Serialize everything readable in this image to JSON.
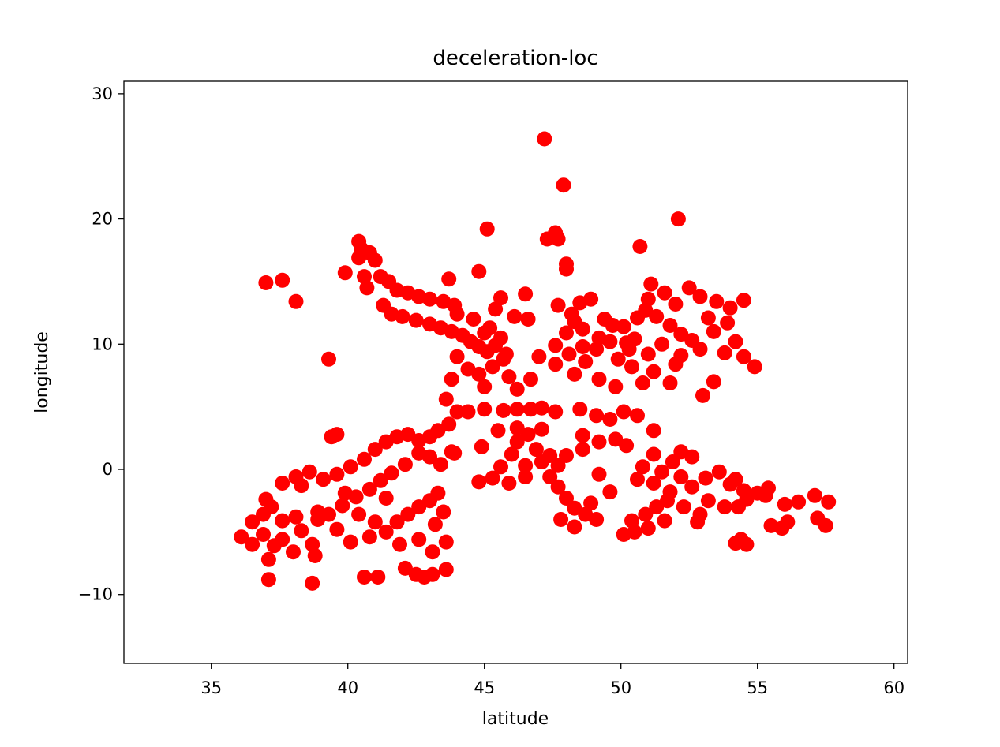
{
  "chart_data": {
    "type": "scatter",
    "title": "deceleration-loc",
    "xlabel": "latitude",
    "ylabel": "longitude",
    "xlim": [
      31.8,
      60.5
    ],
    "ylim": [
      -15.5,
      31
    ],
    "xticks": [
      35,
      40,
      45,
      50,
      55,
      60
    ],
    "yticks": [
      30,
      20,
      10,
      0,
      -10
    ],
    "xtick_labels": [
      "35",
      "40",
      "45",
      "50",
      "55",
      "60"
    ],
    "ytick_labels": [
      "30",
      "20",
      "10",
      "0",
      "−10"
    ],
    "grid": false,
    "legend": "none",
    "series": [
      {
        "color": "#ff0000",
        "marker": "circle",
        "points": [
          [
            47.2,
            26.4
          ],
          [
            47.9,
            22.7
          ],
          [
            52.1,
            20.0
          ],
          [
            45.1,
            19.2
          ],
          [
            47.3,
            18.4
          ],
          [
            47.6,
            18.9
          ],
          [
            47.7,
            18.4
          ],
          [
            40.4,
            18.2
          ],
          [
            40.5,
            17.6
          ],
          [
            40.8,
            17.3
          ],
          [
            41.0,
            16.7
          ],
          [
            40.4,
            16.9
          ],
          [
            50.7,
            17.8
          ],
          [
            48.0,
            16.4
          ],
          [
            48.0,
            16.0
          ],
          [
            39.9,
            15.7
          ],
          [
            44.8,
            15.8
          ],
          [
            43.7,
            15.2
          ],
          [
            37.0,
            14.9
          ],
          [
            37.6,
            15.1
          ],
          [
            38.1,
            13.4
          ],
          [
            40.6,
            15.4
          ],
          [
            41.2,
            15.4
          ],
          [
            41.5,
            15.0
          ],
          [
            40.7,
            14.5
          ],
          [
            41.8,
            14.3
          ],
          [
            42.2,
            14.1
          ],
          [
            42.6,
            13.8
          ],
          [
            43.0,
            13.6
          ],
          [
            43.5,
            13.4
          ],
          [
            43.9,
            13.1
          ],
          [
            41.3,
            13.1
          ],
          [
            41.6,
            12.4
          ],
          [
            42.0,
            12.2
          ],
          [
            42.5,
            11.9
          ],
          [
            43.0,
            11.6
          ],
          [
            43.4,
            11.3
          ],
          [
            43.8,
            11.0
          ],
          [
            44.2,
            10.7
          ],
          [
            44.5,
            10.2
          ],
          [
            44.8,
            9.8
          ],
          [
            45.1,
            9.4
          ],
          [
            45.4,
            9.9
          ],
          [
            45.6,
            10.5
          ],
          [
            45.2,
            11.3
          ],
          [
            45.4,
            12.8
          ],
          [
            45.6,
            13.7
          ],
          [
            46.1,
            12.2
          ],
          [
            46.6,
            12.0
          ],
          [
            46.5,
            14.0
          ],
          [
            44.0,
            12.4
          ],
          [
            44.6,
            12.0
          ],
          [
            45.0,
            10.9
          ],
          [
            45.7,
            8.8
          ],
          [
            45.3,
            8.2
          ],
          [
            44.8,
            7.6
          ],
          [
            45.9,
            7.4
          ],
          [
            46.2,
            6.4
          ],
          [
            44.4,
            8.0
          ],
          [
            43.8,
            7.2
          ],
          [
            44.0,
            9.0
          ],
          [
            45.0,
            6.6
          ],
          [
            46.7,
            7.2
          ],
          [
            45.8,
            9.2
          ],
          [
            39.3,
            8.8
          ],
          [
            48.5,
            13.3
          ],
          [
            48.9,
            13.6
          ],
          [
            49.4,
            12.0
          ],
          [
            48.2,
            12.4
          ],
          [
            48.6,
            11.2
          ],
          [
            49.2,
            10.5
          ],
          [
            48.0,
            10.9
          ],
          [
            47.6,
            9.9
          ],
          [
            48.1,
            9.2
          ],
          [
            48.7,
            8.6
          ],
          [
            49.1,
            9.6
          ],
          [
            49.6,
            10.2
          ],
          [
            47.6,
            8.4
          ],
          [
            48.3,
            7.6
          ],
          [
            49.2,
            7.2
          ],
          [
            49.9,
            8.8
          ],
          [
            50.3,
            9.6
          ],
          [
            50.5,
            10.4
          ],
          [
            50.1,
            11.4
          ],
          [
            50.6,
            12.1
          ],
          [
            50.9,
            12.7
          ],
          [
            51.0,
            13.6
          ],
          [
            51.1,
            14.8
          ],
          [
            51.6,
            14.1
          ],
          [
            52.0,
            13.2
          ],
          [
            52.5,
            14.5
          ],
          [
            52.9,
            13.8
          ],
          [
            53.5,
            13.4
          ],
          [
            54.0,
            12.9
          ],
          [
            54.5,
            13.5
          ],
          [
            53.9,
            11.7
          ],
          [
            53.4,
            11.0
          ],
          [
            52.6,
            10.3
          ],
          [
            52.9,
            9.6
          ],
          [
            53.8,
            9.3
          ],
          [
            54.5,
            9.0
          ],
          [
            54.9,
            8.2
          ],
          [
            54.2,
            10.2
          ],
          [
            51.3,
            12.2
          ],
          [
            51.8,
            11.5
          ],
          [
            52.2,
            10.8
          ],
          [
            51.5,
            10.0
          ],
          [
            51.0,
            9.2
          ],
          [
            50.4,
            8.2
          ],
          [
            51.2,
            7.8
          ],
          [
            52.0,
            8.4
          ],
          [
            51.8,
            6.9
          ],
          [
            50.8,
            6.9
          ],
          [
            49.8,
            6.6
          ],
          [
            53.4,
            7.0
          ],
          [
            53.0,
            5.9
          ],
          [
            47.7,
            13.1
          ],
          [
            48.3,
            11.8
          ],
          [
            49.7,
            11.5
          ],
          [
            52.2,
            9.1
          ],
          [
            47.0,
            9.0
          ],
          [
            48.6,
            9.8
          ],
          [
            50.2,
            10.1
          ],
          [
            53.2,
            12.1
          ],
          [
            45.0,
            4.8
          ],
          [
            45.7,
            4.7
          ],
          [
            46.2,
            4.8
          ],
          [
            46.7,
            4.8
          ],
          [
            47.1,
            4.9
          ],
          [
            47.6,
            4.6
          ],
          [
            44.4,
            4.6
          ],
          [
            45.5,
            3.1
          ],
          [
            46.2,
            3.3
          ],
          [
            46.6,
            2.8
          ],
          [
            47.1,
            3.2
          ],
          [
            46.9,
            1.6
          ],
          [
            47.4,
            1.1
          ],
          [
            46.5,
            0.3
          ],
          [
            46.0,
            1.2
          ],
          [
            45.6,
            0.2
          ],
          [
            45.3,
            -0.7
          ],
          [
            44.8,
            -1.0
          ],
          [
            45.9,
            -1.1
          ],
          [
            46.5,
            -0.6
          ],
          [
            46.2,
            2.2
          ],
          [
            44.9,
            1.8
          ],
          [
            43.6,
            5.6
          ],
          [
            44.0,
            4.6
          ],
          [
            43.7,
            3.6
          ],
          [
            43.3,
            3.1
          ],
          [
            43.0,
            2.6
          ],
          [
            42.6,
            2.3
          ],
          [
            42.2,
            2.8
          ],
          [
            41.8,
            2.6
          ],
          [
            41.4,
            2.2
          ],
          [
            41.0,
            1.6
          ],
          [
            40.6,
            0.8
          ],
          [
            40.1,
            0.2
          ],
          [
            39.6,
            -0.4
          ],
          [
            39.1,
            -0.8
          ],
          [
            38.6,
            -0.2
          ],
          [
            38.1,
            -0.6
          ],
          [
            37.6,
            -1.1
          ],
          [
            39.6,
            2.8
          ],
          [
            39.4,
            2.6
          ],
          [
            42.6,
            1.3
          ],
          [
            43.0,
            1.0
          ],
          [
            43.4,
            0.4
          ],
          [
            43.8,
            1.4
          ],
          [
            42.1,
            0.4
          ],
          [
            41.6,
            -0.3
          ],
          [
            41.2,
            -0.9
          ],
          [
            40.8,
            -1.6
          ],
          [
            40.3,
            -2.2
          ],
          [
            39.8,
            -2.9
          ],
          [
            39.3,
            -3.6
          ],
          [
            38.9,
            -4.0
          ],
          [
            40.4,
            -3.6
          ],
          [
            41.0,
            -4.2
          ],
          [
            41.4,
            -5.0
          ],
          [
            41.8,
            -4.2
          ],
          [
            42.2,
            -3.6
          ],
          [
            42.6,
            -3.0
          ],
          [
            43.0,
            -2.5
          ],
          [
            43.3,
            -1.9
          ],
          [
            43.5,
            -3.4
          ],
          [
            43.2,
            -4.4
          ],
          [
            43.6,
            -5.8
          ],
          [
            43.1,
            -6.6
          ],
          [
            42.6,
            -5.6
          ],
          [
            41.9,
            -6.0
          ],
          [
            40.8,
            -5.4
          ],
          [
            40.1,
            -5.8
          ],
          [
            39.6,
            -4.8
          ],
          [
            40.6,
            -8.6
          ],
          [
            41.1,
            -8.6
          ],
          [
            42.1,
            -7.9
          ],
          [
            42.5,
            -8.4
          ],
          [
            43.1,
            -8.4
          ],
          [
            43.6,
            -8.0
          ],
          [
            42.8,
            -8.6
          ],
          [
            37.1,
            -8.8
          ],
          [
            37.1,
            -7.2
          ],
          [
            37.3,
            -6.1
          ],
          [
            37.6,
            -5.6
          ],
          [
            36.1,
            -5.4
          ],
          [
            36.5,
            -6.0
          ],
          [
            36.9,
            -5.2
          ],
          [
            36.5,
            -4.2
          ],
          [
            36.9,
            -3.6
          ],
          [
            37.2,
            -3.0
          ],
          [
            37.0,
            -2.4
          ],
          [
            37.6,
            -4.1
          ],
          [
            38.1,
            -3.8
          ],
          [
            38.3,
            -4.9
          ],
          [
            38.7,
            -6.0
          ],
          [
            38.0,
            -6.6
          ],
          [
            38.8,
            -6.9
          ],
          [
            38.7,
            -9.1
          ],
          [
            38.9,
            -3.4
          ],
          [
            41.4,
            -2.3
          ],
          [
            43.9,
            1.3
          ],
          [
            38.3,
            -1.3
          ],
          [
            39.9,
            -1.9
          ],
          [
            48.5,
            4.8
          ],
          [
            49.1,
            4.3
          ],
          [
            49.6,
            4.0
          ],
          [
            48.6,
            2.7
          ],
          [
            49.2,
            2.2
          ],
          [
            49.8,
            2.4
          ],
          [
            50.2,
            1.9
          ],
          [
            48.6,
            1.6
          ],
          [
            48.0,
            1.1
          ],
          [
            47.7,
            0.3
          ],
          [
            47.1,
            0.6
          ],
          [
            47.4,
            -0.6
          ],
          [
            47.7,
            -1.4
          ],
          [
            48.0,
            -2.3
          ],
          [
            48.3,
            -3.1
          ],
          [
            48.7,
            -3.6
          ],
          [
            48.3,
            -4.6
          ],
          [
            47.8,
            -4.0
          ],
          [
            49.1,
            -4.0
          ],
          [
            48.9,
            -2.7
          ],
          [
            49.2,
            -0.4
          ],
          [
            49.6,
            -1.8
          ],
          [
            50.1,
            4.6
          ],
          [
            50.6,
            4.3
          ],
          [
            51.2,
            3.1
          ],
          [
            51.2,
            1.2
          ],
          [
            50.8,
            0.2
          ],
          [
            50.6,
            -0.8
          ],
          [
            51.2,
            -1.1
          ],
          [
            51.5,
            -0.2
          ],
          [
            51.9,
            0.6
          ],
          [
            52.2,
            1.4
          ],
          [
            52.6,
            1.0
          ],
          [
            52.2,
            -0.6
          ],
          [
            52.6,
            -1.4
          ],
          [
            53.1,
            -0.7
          ],
          [
            53.6,
            -0.2
          ],
          [
            54.0,
            -1.2
          ],
          [
            54.5,
            -1.7
          ],
          [
            55.0,
            -1.9
          ],
          [
            53.2,
            -2.5
          ],
          [
            53.8,
            -3.0
          ],
          [
            52.9,
            -3.6
          ],
          [
            52.3,
            -3.0
          ],
          [
            51.7,
            -2.5
          ],
          [
            51.3,
            -3.0
          ],
          [
            50.9,
            -3.6
          ],
          [
            50.4,
            -4.1
          ],
          [
            51.0,
            -4.7
          ],
          [
            50.5,
            -5.0
          ],
          [
            50.1,
            -5.2
          ],
          [
            51.6,
            -4.1
          ],
          [
            52.8,
            -4.2
          ],
          [
            54.3,
            -3.0
          ],
          [
            54.6,
            -2.4
          ],
          [
            55.3,
            -2.1
          ],
          [
            55.4,
            -1.5
          ],
          [
            54.4,
            -5.6
          ],
          [
            54.2,
            -5.9
          ],
          [
            54.6,
            -6.0
          ],
          [
            55.5,
            -4.5
          ],
          [
            55.9,
            -4.7
          ],
          [
            56.1,
            -4.2
          ],
          [
            56.0,
            -2.8
          ],
          [
            56.5,
            -2.6
          ],
          [
            57.1,
            -2.1
          ],
          [
            57.6,
            -2.6
          ],
          [
            57.2,
            -3.9
          ],
          [
            57.5,
            -4.5
          ],
          [
            51.8,
            -1.8
          ],
          [
            54.2,
            -0.8
          ]
        ]
      }
    ]
  }
}
